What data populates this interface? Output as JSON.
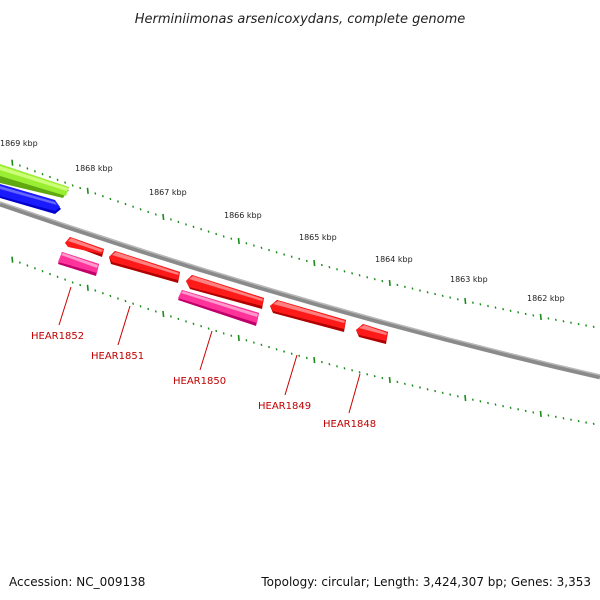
{
  "title": "Herminiimonas arsenicoxydans, complete genome",
  "ruler": {
    "tick_color": "#1a8c1a",
    "labels": [
      "1869 kbp",
      "1868 kbp",
      "1867 kbp",
      "1866 kbp",
      "1865 kbp",
      "1864 kbp",
      "1863 kbp",
      "1862 kbp"
    ]
  },
  "colors": {
    "backbone": "#808080",
    "forward_gene": "#ff0000",
    "reverse_gene": "#ff3399",
    "feature_green": "#99ee33",
    "feature_blue": "#0000ff",
    "label": "#cc0000"
  },
  "genes": [
    {
      "locus_tag": "HEAR1852",
      "strand": "reverse"
    },
    {
      "locus_tag": "HEAR1851",
      "strand": "forward"
    },
    {
      "locus_tag": "HEAR1850",
      "strand": "reverse"
    },
    {
      "locus_tag": "HEAR1849",
      "strand": "forward"
    },
    {
      "locus_tag": "HEAR1848",
      "strand": "forward"
    }
  ],
  "footer": {
    "accession": "Accession: NC_009138",
    "summary": "Topology: circular; Length: 3,424,307 bp; Genes: 3,353"
  }
}
